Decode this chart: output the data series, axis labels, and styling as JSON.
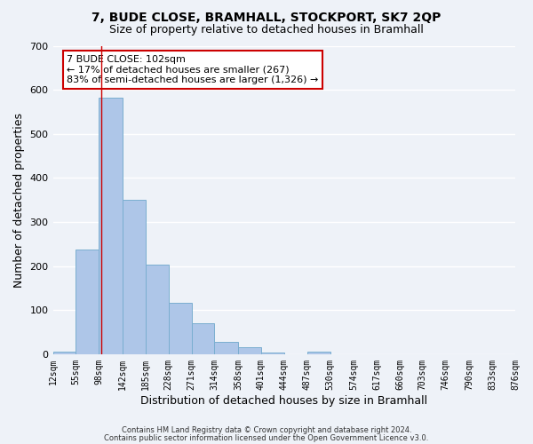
{
  "title": "7, BUDE CLOSE, BRAMHALL, STOCKPORT, SK7 2QP",
  "subtitle": "Size of property relative to detached houses in Bramhall",
  "xlabel": "Distribution of detached houses by size in Bramhall",
  "ylabel": "Number of detached properties",
  "bar_edges": [
    12,
    55,
    98,
    142,
    185,
    228,
    271,
    314,
    358,
    401,
    444,
    487,
    530,
    574,
    617,
    660,
    703,
    746,
    790,
    833,
    876
  ],
  "bar_heights": [
    5,
    237,
    583,
    350,
    203,
    116,
    70,
    27,
    15,
    4,
    0,
    5,
    0,
    0,
    0,
    0,
    0,
    0,
    0,
    0
  ],
  "bar_color": "#aec6e8",
  "bar_edge_color": "#7aaed0",
  "vline_x": 102,
  "vline_color": "#cc0000",
  "ylim": [
    0,
    700
  ],
  "yticks": [
    0,
    100,
    200,
    300,
    400,
    500,
    600,
    700
  ],
  "annotation_box_text": "7 BUDE CLOSE: 102sqm\n← 17% of detached houses are smaller (267)\n83% of semi-detached houses are larger (1,326) →",
  "box_color": "white",
  "box_edge_color": "#cc0000",
  "footer_line1": "Contains HM Land Registry data © Crown copyright and database right 2024.",
  "footer_line2": "Contains public sector information licensed under the Open Government Licence v3.0.",
  "bg_color": "#eef2f8",
  "grid_color": "white",
  "title_fontsize": 10,
  "subtitle_fontsize": 9,
  "tick_labels": [
    "12sqm",
    "55sqm",
    "98sqm",
    "142sqm",
    "185sqm",
    "228sqm",
    "271sqm",
    "314sqm",
    "358sqm",
    "401sqm",
    "444sqm",
    "487sqm",
    "530sqm",
    "574sqm",
    "617sqm",
    "660sqm",
    "703sqm",
    "746sqm",
    "790sqm",
    "833sqm",
    "876sqm"
  ]
}
